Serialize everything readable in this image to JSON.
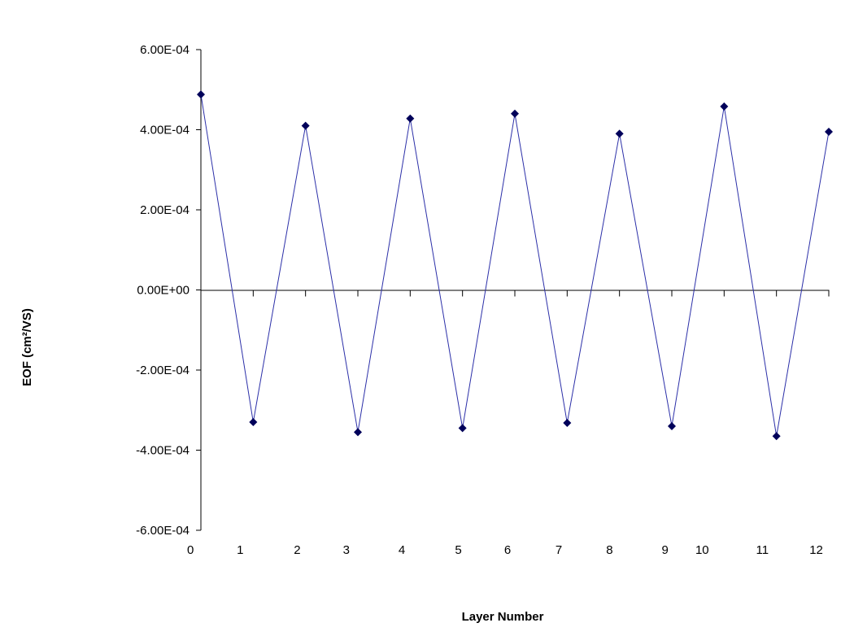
{
  "chart_data": {
    "type": "line",
    "title": "",
    "xlabel": "Layer Number",
    "ylabel": "EOF (cm²/VS)",
    "ylim": [
      -0.0006,
      0.0006
    ],
    "yticks": [
      {
        "value": 0.0006,
        "label": "6.00E-04"
      },
      {
        "value": 0.0004,
        "label": "4.00E-04"
      },
      {
        "value": 0.0002,
        "label": "2.00E-04"
      },
      {
        "value": 0,
        "label": "0.00E+00"
      },
      {
        "value": -0.0002,
        "label": "-2.00E-04"
      },
      {
        "value": -0.0004,
        "label": "-4.00E-04"
      },
      {
        "value": -0.0006,
        "label": "-6.00E-04"
      }
    ],
    "xtick_labels": [
      "0",
      "1",
      "2",
      "3",
      "4",
      "5",
      "6",
      "7",
      "8",
      "9",
      "10",
      "11",
      "12"
    ],
    "xtick_positions": [
      0.0,
      0.95,
      2.04,
      2.98,
      4.04,
      5.12,
      6.06,
      7.04,
      8.01,
      9.07,
      9.78,
      10.93,
      11.96
    ],
    "xlim": [
      0.2,
      12.2
    ],
    "grid": false,
    "legend": "none",
    "series": [
      {
        "color": "#00005a",
        "marker": "diamond",
        "x": [
          0.2,
          1.2,
          2.2,
          3.2,
          4.2,
          5.2,
          6.2,
          7.2,
          8.2,
          9.2,
          10.2,
          11.2,
          12.2
        ],
        "y": [
          0.000488,
          -0.00033,
          0.00041,
          -0.000355,
          0.000428,
          -0.000345,
          0.00044,
          -0.000332,
          0.00039,
          -0.00034,
          0.000458,
          -0.000365,
          0.000395
        ]
      }
    ]
  }
}
